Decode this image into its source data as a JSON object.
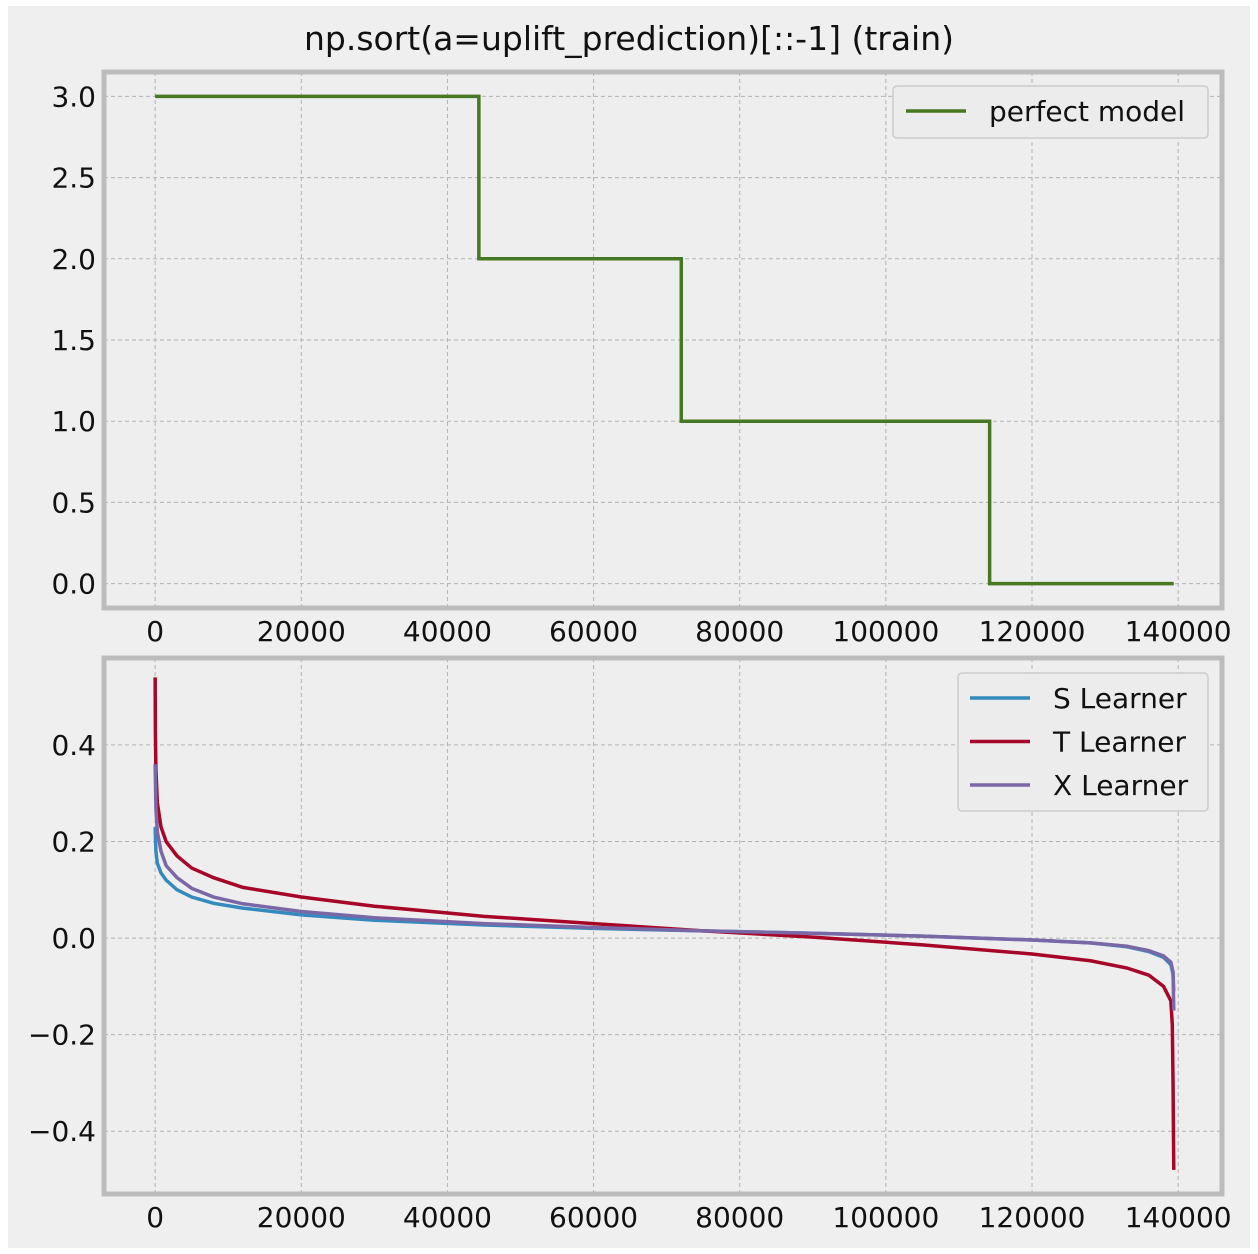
{
  "figure": {
    "title": "np.sort(a=uplift_prediction)[::-1] (train)"
  },
  "chart_data": [
    {
      "type": "line",
      "grid": true,
      "legend_position": "top-right",
      "xlim": [
        -7000,
        146000
      ],
      "ylim": [
        -0.15,
        3.15
      ],
      "x_ticks": [
        0,
        20000,
        40000,
        60000,
        80000,
        100000,
        120000,
        140000
      ],
      "x_tick_labels": [
        "0",
        "20000",
        "40000",
        "60000",
        "80000",
        "100000",
        "120000",
        "140000"
      ],
      "y_ticks": [
        0.0,
        0.5,
        1.0,
        1.5,
        2.0,
        2.5,
        3.0
      ],
      "y_tick_labels": [
        "0.0",
        "0.5",
        "1.0",
        "1.5",
        "2.0",
        "2.5",
        "3.0"
      ],
      "series": [
        {
          "name": "perfect model",
          "color": "#467821",
          "x": [
            0,
            44300,
            44300,
            72000,
            72000,
            114200,
            114200,
            139400
          ],
          "y": [
            3.0,
            3.0,
            2.0,
            2.0,
            1.0,
            1.0,
            0.0,
            0.0
          ]
        }
      ]
    },
    {
      "type": "line",
      "grid": true,
      "legend_position": "top-right",
      "xlim": [
        -7000,
        146000
      ],
      "ylim": [
        -0.53,
        0.58
      ],
      "x_ticks": [
        0,
        20000,
        40000,
        60000,
        80000,
        100000,
        120000,
        140000
      ],
      "x_tick_labels": [
        "0",
        "20000",
        "40000",
        "60000",
        "80000",
        "100000",
        "120000",
        "140000"
      ],
      "y_ticks": [
        -0.4,
        -0.2,
        0.0,
        0.2,
        0.4
      ],
      "y_tick_labels": [
        "−0.4",
        "−0.2",
        "0.0",
        "0.2",
        "0.4"
      ],
      "series": [
        {
          "name": "S Learner",
          "color": "#348ABD",
          "x": [
            0,
            100,
            300,
            800,
            1500,
            3000,
            5000,
            8000,
            12000,
            20000,
            30000,
            45000,
            60000,
            75000,
            90000,
            105000,
            120000,
            128000,
            133000,
            136000,
            138000,
            139000,
            139300,
            139400
          ],
          "y": [
            0.23,
            0.18,
            0.155,
            0.135,
            0.12,
            0.1,
            0.085,
            0.072,
            0.062,
            0.048,
            0.037,
            0.027,
            0.02,
            0.015,
            0.01,
            0.004,
            -0.004,
            -0.01,
            -0.018,
            -0.028,
            -0.04,
            -0.055,
            -0.075,
            -0.11
          ]
        },
        {
          "name": "T Learner",
          "color": "#A60628",
          "x": [
            0,
            30,
            100,
            300,
            800,
            1500,
            3000,
            5000,
            8000,
            12000,
            20000,
            30000,
            45000,
            60000,
            75000,
            90000,
            105000,
            120000,
            128000,
            133000,
            136000,
            138000,
            139000,
            139200,
            139300,
            139400
          ],
          "y": [
            0.54,
            0.43,
            0.35,
            0.28,
            0.23,
            0.2,
            0.17,
            0.145,
            0.125,
            0.105,
            0.085,
            0.066,
            0.045,
            0.03,
            0.015,
            0.002,
            -0.014,
            -0.033,
            -0.047,
            -0.062,
            -0.077,
            -0.1,
            -0.13,
            -0.18,
            -0.3,
            -0.48
          ]
        },
        {
          "name": "X Learner",
          "color": "#7A68A6",
          "x": [
            0,
            100,
            300,
            800,
            1500,
            3000,
            5000,
            8000,
            12000,
            20000,
            30000,
            45000,
            60000,
            75000,
            90000,
            105000,
            120000,
            128000,
            133000,
            136000,
            138000,
            139000,
            139300,
            139400
          ],
          "y": [
            0.36,
            0.27,
            0.22,
            0.18,
            0.15,
            0.125,
            0.103,
            0.085,
            0.071,
            0.055,
            0.042,
            0.03,
            0.022,
            0.015,
            0.01,
            0.004,
            -0.004,
            -0.01,
            -0.017,
            -0.026,
            -0.037,
            -0.05,
            -0.07,
            -0.15
          ]
        }
      ]
    }
  ]
}
